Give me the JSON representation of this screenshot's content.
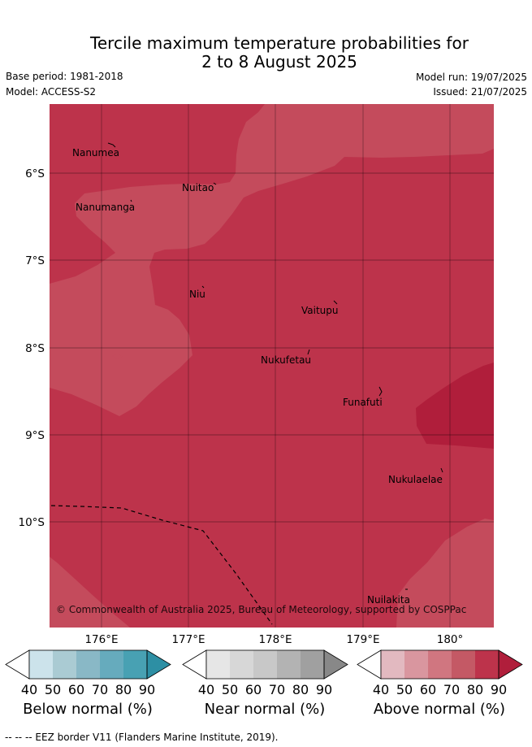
{
  "title": {
    "line1": "Tercile maximum temperature probabilities for",
    "line2": "2 to 8 August 2025"
  },
  "meta": {
    "base_period": "Base period: 1981-2018",
    "model": "Model: ACCESS-S2",
    "model_run": "Model run: 19/07/2025",
    "issued": "Issued: 21/07/2025"
  },
  "map": {
    "lat_labels": [
      "6°S",
      "7°S",
      "8°S",
      "9°S",
      "10°S"
    ],
    "lon_labels": [
      "176°E",
      "177°E",
      "178°E",
      "179°E",
      "180°"
    ],
    "places": [
      "Nanumea",
      "Nuitao",
      "Nanumanga",
      "Niu",
      "Vaitupu",
      "Nukufetau",
      "Funafuti",
      "Nukulaelae",
      "Nuilakita"
    ],
    "copyright": "© Commonwealth of Australia 2025, Bureau of Meteorology, supported by COSPPac",
    "colors": {
      "above_70": "#c44b5c",
      "above_80": "#bd334b",
      "above_90": "#b01e3b",
      "eez_line": "#000000"
    }
  },
  "colorbars": {
    "ticks": [
      "40",
      "50",
      "60",
      "70",
      "80",
      "90"
    ],
    "below": {
      "label": "Below normal (%)",
      "colors": [
        "#ffffff",
        "#cce3eb",
        "#aacbd3",
        "#89b8c6",
        "#66abbd",
        "#48a1b3",
        "#2d8fa4"
      ]
    },
    "near": {
      "label": "Near normal (%)",
      "colors": [
        "#ffffff",
        "#e6e6e6",
        "#d7d7d7",
        "#c8c8c8",
        "#b3b3b3",
        "#a0a0a0",
        "#888888"
      ]
    },
    "above": {
      "label": "Above normal (%)",
      "colors": [
        "#ffffff",
        "#e2b9c0",
        "#d9969f",
        "#d07680",
        "#c45965",
        "#bd334b",
        "#b01e3b"
      ]
    }
  },
  "footer": "-- --  -- EEZ border V11 (Flanders Marine Institute, 2019)."
}
